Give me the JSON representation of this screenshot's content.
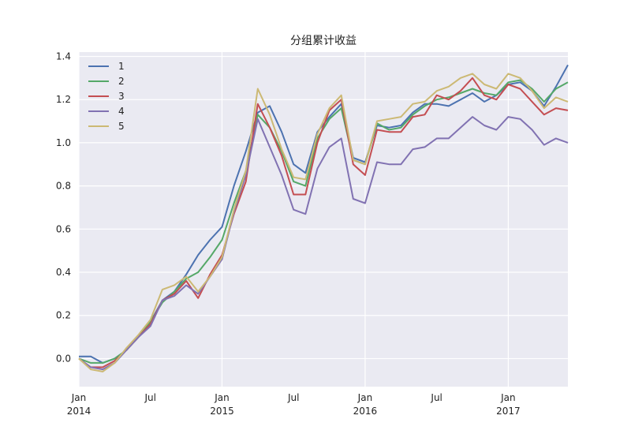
{
  "chart_data": {
    "type": "line",
    "title": "分组累计收益",
    "xlabel": "",
    "ylabel": "",
    "ylim": [
      -0.13,
      1.42
    ],
    "yticks": [
      "0.0",
      "0.2",
      "0.4",
      "0.6",
      "0.8",
      "1.0",
      "1.2",
      "1.4"
    ],
    "x_range": [
      "2014-01",
      "2017-06"
    ],
    "x_ticks": [
      {
        "date": "2014-01",
        "label": "Jan",
        "year": "2014",
        "major": true
      },
      {
        "date": "2014-07",
        "label": "Jul",
        "year": "",
        "major": false
      },
      {
        "date": "2015-01",
        "label": "Jan",
        "year": "2015",
        "major": true
      },
      {
        "date": "2015-07",
        "label": "Jul",
        "year": "",
        "major": false
      },
      {
        "date": "2016-01",
        "label": "Jan",
        "year": "2016",
        "major": true
      },
      {
        "date": "2016-07",
        "label": "Jul",
        "year": "",
        "major": false
      },
      {
        "date": "2017-01",
        "label": "Jan",
        "year": "2017",
        "major": true
      }
    ],
    "legend_position": "top-left",
    "grid": true,
    "x": [
      "2014-01",
      "2014-02",
      "2014-03",
      "2014-04",
      "2014-05",
      "2014-06",
      "2014-07",
      "2014-08",
      "2014-09",
      "2014-10",
      "2014-11",
      "2014-12",
      "2015-01",
      "2015-02",
      "2015-03",
      "2015-04",
      "2015-05",
      "2015-06",
      "2015-07",
      "2015-08",
      "2015-09",
      "2015-10",
      "2015-11",
      "2015-12",
      "2016-01",
      "2016-02",
      "2016-03",
      "2016-04",
      "2016-05",
      "2016-06",
      "2016-07",
      "2016-08",
      "2016-09",
      "2016-10",
      "2016-11",
      "2016-12",
      "2017-01",
      "2017-02",
      "2017-03",
      "2017-04",
      "2017-05",
      "2017-06"
    ],
    "series": [
      {
        "name": "1",
        "color": "#4c72b0",
        "values": [
          0.01,
          0.01,
          -0.02,
          0.0,
          0.04,
          0.1,
          0.17,
          0.27,
          0.31,
          0.39,
          0.48,
          0.55,
          0.61,
          0.8,
          0.96,
          1.14,
          1.17,
          1.05,
          0.9,
          0.86,
          1.05,
          1.12,
          1.18,
          0.93,
          0.91,
          1.08,
          1.07,
          1.08,
          1.14,
          1.18,
          1.18,
          1.17,
          1.2,
          1.23,
          1.19,
          1.22,
          1.27,
          1.28,
          1.24,
          1.17,
          1.26,
          1.36
        ]
      },
      {
        "name": "2",
        "color": "#55a868",
        "values": [
          0.0,
          -0.02,
          -0.02,
          0.0,
          0.04,
          0.1,
          0.17,
          0.26,
          0.31,
          0.37,
          0.4,
          0.47,
          0.55,
          0.72,
          0.87,
          1.13,
          1.07,
          0.96,
          0.82,
          0.8,
          1.02,
          1.11,
          1.16,
          0.92,
          0.9,
          1.09,
          1.06,
          1.07,
          1.13,
          1.17,
          1.2,
          1.21,
          1.23,
          1.25,
          1.23,
          1.22,
          1.28,
          1.29,
          1.25,
          1.19,
          1.25,
          1.28
        ]
      },
      {
        "name": "3",
        "color": "#c44e52",
        "values": [
          0.0,
          -0.04,
          -0.04,
          -0.01,
          0.04,
          0.1,
          0.16,
          0.27,
          0.3,
          0.36,
          0.28,
          0.39,
          0.48,
          0.67,
          0.82,
          1.18,
          1.07,
          0.94,
          0.76,
          0.76,
          1.0,
          1.15,
          1.2,
          0.9,
          0.85,
          1.06,
          1.05,
          1.05,
          1.12,
          1.13,
          1.22,
          1.2,
          1.24,
          1.3,
          1.22,
          1.2,
          1.27,
          1.25,
          1.19,
          1.13,
          1.16,
          1.15
        ]
      },
      {
        "name": "4",
        "color": "#8172b2",
        "values": [
          0.0,
          -0.04,
          -0.05,
          -0.02,
          0.04,
          0.1,
          0.15,
          0.27,
          0.29,
          0.34,
          0.3,
          0.38,
          0.46,
          0.68,
          0.85,
          1.11,
          0.98,
          0.85,
          0.69,
          0.67,
          0.88,
          0.98,
          1.02,
          0.74,
          0.72,
          0.91,
          0.9,
          0.9,
          0.97,
          0.98,
          1.02,
          1.02,
          1.07,
          1.12,
          1.08,
          1.06,
          1.12,
          1.11,
          1.06,
          0.99,
          1.02,
          1.0
        ]
      },
      {
        "name": "5",
        "color": "#ccb974",
        "values": [
          0.0,
          -0.05,
          -0.06,
          -0.02,
          0.05,
          0.11,
          0.18,
          0.32,
          0.34,
          0.38,
          0.31,
          0.38,
          0.47,
          0.69,
          0.87,
          1.25,
          1.13,
          0.97,
          0.84,
          0.83,
          1.04,
          1.16,
          1.22,
          0.92,
          0.9,
          1.1,
          1.11,
          1.12,
          1.18,
          1.19,
          1.24,
          1.26,
          1.3,
          1.32,
          1.27,
          1.25,
          1.32,
          1.3,
          1.24,
          1.16,
          1.21,
          1.19
        ]
      }
    ]
  }
}
